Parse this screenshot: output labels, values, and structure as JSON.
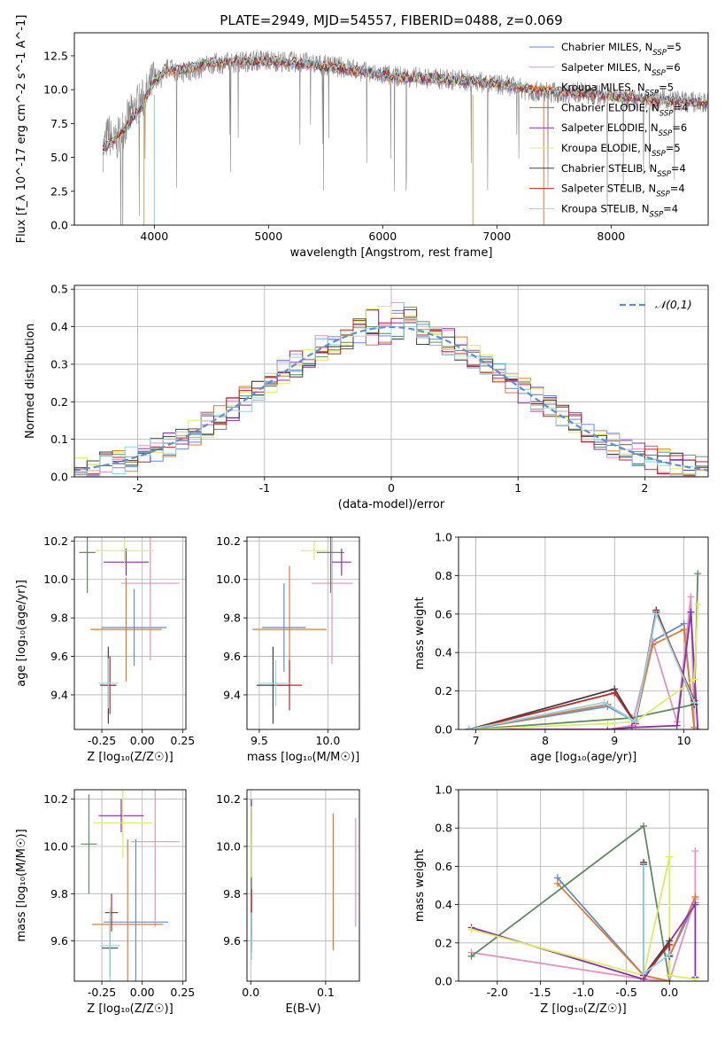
{
  "figure": {
    "title": "PLATE=2949, MJD=54557, FIBERID=0488, z=0.069"
  },
  "models": [
    {
      "name": "Chabrier MILES",
      "nssp": "5",
      "color": "#5b8fd9"
    },
    {
      "name": "Salpeter MILES",
      "nssp": "6",
      "color": "#e98fc0"
    },
    {
      "name": "Kroupa MILES",
      "nssp": "5",
      "color": "#e27b2e"
    },
    {
      "name": "Chabrier ELODIE",
      "nssp": "4",
      "color": "#5f8c62"
    },
    {
      "name": "Salpeter ELODIE",
      "nssp": "6",
      "color": "#8a2fb1"
    },
    {
      "name": "Kroupa ELODIE",
      "nssp": "5",
      "color": "#dcef5a"
    },
    {
      "name": "Chabrier STELIB",
      "nssp": "4",
      "color": "#404040"
    },
    {
      "name": "Salpeter STELIB",
      "nssp": "4",
      "color": "#c42424"
    },
    {
      "name": "Kroupa STELIB",
      "nssp": "4",
      "color": "#8fd8e8"
    }
  ],
  "chart_data": [
    {
      "id": "spectrum",
      "type": "line",
      "xlabel": "wavelength [Angstrom, rest frame]",
      "ylabel": "Flux [f_λ 10^-17 erg cm^-2 s^-1 A^-1]",
      "xlim": [
        3300,
        8850
      ],
      "ylim": [
        0,
        14.2
      ],
      "xticks": [
        4000,
        5000,
        6000,
        7000,
        8000
      ],
      "yticks": [
        0.0,
        2.5,
        5.0,
        7.5,
        10.0,
        12.5
      ],
      "grid": false,
      "legend": "upper right",
      "data_series": {
        "name": "data",
        "color": "#888888",
        "x": [
          3550,
          3600,
          3650,
          3700,
          3750,
          3800,
          3850,
          3900,
          3950,
          4000,
          4050,
          4100,
          4150,
          4200,
          4300,
          4400,
          4500,
          4700,
          4900,
          5100,
          5300,
          5500,
          5700,
          5900,
          6100,
          6300,
          6500,
          6700,
          6900,
          7100,
          7300,
          7500,
          7700,
          7900,
          8100,
          8300,
          8500,
          8700,
          8850
        ],
        "y": [
          5.5,
          6.8,
          5.9,
          6.7,
          7.5,
          8.2,
          8.9,
          9.3,
          9.9,
          11.0,
          10.7,
          11.4,
          11.8,
          11.2,
          11.3,
          11.6,
          11.9,
          12.0,
          12.2,
          12.1,
          12.0,
          11.8,
          11.6,
          11.2,
          11.0,
          10.9,
          10.8,
          10.7,
          10.5,
          10.3,
          9.9,
          9.8,
          9.8,
          9.6,
          9.4,
          9.3,
          9.2,
          9.1,
          9.0
        ]
      },
      "model_series": {
        "x": [
          3550,
          3700,
          3900,
          4000,
          4100,
          4300,
          4500,
          4700,
          5000,
          5300,
          5600,
          5900,
          6200,
          6500,
          6800,
          7100,
          7400,
          7700,
          8000,
          8300,
          8600,
          8850
        ],
        "y": [
          5.6,
          6.7,
          8.9,
          10.7,
          11.3,
          11.6,
          12.0,
          12.1,
          12.1,
          11.9,
          11.6,
          11.2,
          10.9,
          10.8,
          10.6,
          10.3,
          9.9,
          9.8,
          9.5,
          9.3,
          9.1,
          9.0
        ]
      }
    },
    {
      "id": "residual-histogram",
      "type": "line",
      "xlabel": "(data-model)/error",
      "ylabel": "Normed distribution",
      "xlim": [
        -2.5,
        2.5
      ],
      "ylim": [
        0,
        0.51
      ],
      "xticks": [
        -2,
        -1,
        0,
        1,
        2
      ],
      "yticks": [
        0.0,
        0.1,
        0.2,
        0.3,
        0.4,
        0.5
      ],
      "grid": true,
      "legend": "upper right",
      "gauss_label": "𝒩(0,1)",
      "bin_width": 0.1,
      "bin_start": -2.5
    },
    {
      "id": "age-vs-z",
      "type": "scatter",
      "xlabel": "Z [log₁₀(Z/Z☉)]",
      "ylabel": "age  [log₁₀(age/yr)]",
      "xlim": [
        -0.42,
        0.27
      ],
      "ylim": [
        9.22,
        10.22
      ],
      "xticks": [
        -0.25,
        0.0,
        0.25
      ],
      "yticks": [
        9.4,
        9.6,
        9.8,
        10.0,
        10.2
      ],
      "grid": true,
      "points": [
        {
          "x": -0.05,
          "y": 9.75,
          "xerr": 0.2,
          "yerr": 0.2
        },
        {
          "x": 0.05,
          "y": 9.98,
          "xerr": 0.18,
          "yerr": 0.4
        },
        {
          "x": -0.1,
          "y": 9.74,
          "xerr": 0.22,
          "yerr": 0.27
        },
        {
          "x": -0.34,
          "y": 10.14,
          "xerr": 0.05,
          "yerr": 0.21
        },
        {
          "x": -0.1,
          "y": 10.09,
          "xerr": 0.14,
          "yerr": 0.07
        },
        {
          "x": -0.11,
          "y": 10.15,
          "xerr": 0.18,
          "yerr": 0.07
        },
        {
          "x": -0.21,
          "y": 9.45,
          "xerr": 0.05,
          "yerr": 0.2
        },
        {
          "x": -0.2,
          "y": 9.45,
          "xerr": 0.03,
          "yerr": 0.15
        },
        {
          "x": -0.21,
          "y": 9.46,
          "xerr": 0.06,
          "yerr": 0.13
        }
      ]
    },
    {
      "id": "age-vs-mass",
      "type": "scatter",
      "xlabel": "mass [log₁₀(M/M☉)]",
      "ylabel": "",
      "xlim": [
        9.41,
        10.23
      ],
      "ylim": [
        9.22,
        10.22
      ],
      "xticks": [
        9.5,
        10.0
      ],
      "yticks": [
        9.4,
        9.6,
        9.8,
        10.0,
        10.2
      ],
      "grid": true,
      "points": [
        {
          "x": 9.68,
          "y": 9.75,
          "xerr": 0.16,
          "yerr": 0.23
        },
        {
          "x": 10.03,
          "y": 9.98,
          "xerr": 0.15,
          "yerr": 0.42
        },
        {
          "x": 9.72,
          "y": 9.74,
          "xerr": 0.27,
          "yerr": 0.33
        },
        {
          "x": 10.02,
          "y": 10.14,
          "xerr": 0.1,
          "yerr": 0.21
        },
        {
          "x": 10.1,
          "y": 10.09,
          "xerr": 0.07,
          "yerr": 0.07
        },
        {
          "x": 9.9,
          "y": 10.15,
          "xerr": 0.1,
          "yerr": 0.05
        },
        {
          "x": 9.6,
          "y": 9.45,
          "xerr": 0.12,
          "yerr": 0.2
        },
        {
          "x": 9.72,
          "y": 9.45,
          "xerr": 0.09,
          "yerr": 0.13
        },
        {
          "x": 9.62,
          "y": 9.46,
          "xerr": 0.12,
          "yerr": 0.12
        }
      ]
    },
    {
      "id": "massweight-vs-age",
      "type": "line",
      "xlabel": "age  [log₁₀(age/yr)]",
      "ylabel": "mass weight",
      "xlim": [
        6.75,
        10.35
      ],
      "ylim": [
        0,
        1.0
      ],
      "xticks": [
        7,
        8,
        9,
        10
      ],
      "yticks": [
        0.0,
        0.2,
        0.4,
        0.6,
        0.8,
        1.0
      ],
      "grid": true,
      "series": [
        {
          "x": [
            6.9,
            8.9,
            9.3,
            9.55,
            10.0,
            10.15
          ],
          "y": [
            0.0,
            0.12,
            0.04,
            0.46,
            0.55,
            0.0
          ]
        },
        {
          "x": [
            6.9,
            8.9,
            9.25,
            9.55,
            9.9,
            10.1,
            10.15
          ],
          "y": [
            0.0,
            0.0,
            0.02,
            0.46,
            0.04,
            0.69,
            0.0
          ]
        },
        {
          "x": [
            6.9,
            8.9,
            9.3,
            9.55,
            10.0,
            10.15
          ],
          "y": [
            0.0,
            0.13,
            0.04,
            0.44,
            0.52,
            0.01
          ]
        },
        {
          "x": [
            6.9,
            9.25,
            10.15,
            10.2
          ],
          "y": [
            0.0,
            0.06,
            0.13,
            0.81
          ]
        },
        {
          "x": [
            6.9,
            8.9,
            9.25,
            9.9,
            10.1,
            10.2
          ],
          "y": [
            0.0,
            0.0,
            0.01,
            0.02,
            0.61,
            0.0
          ]
        },
        {
          "x": [
            6.9,
            8.9,
            9.3,
            10.15,
            10.2
          ],
          "y": [
            0.0,
            0.03,
            0.04,
            0.26,
            0.65
          ]
        },
        {
          "x": [
            6.9,
            9.0,
            9.3,
            9.6,
            10.15
          ],
          "y": [
            0.0,
            0.21,
            0.03,
            0.62,
            0.13
          ]
        },
        {
          "x": [
            6.9,
            9.0,
            9.3,
            9.6,
            10.15
          ],
          "y": [
            0.0,
            0.19,
            0.03,
            0.61,
            0.15
          ]
        },
        {
          "x": [
            6.9,
            8.85,
            9.3,
            9.6,
            10.15
          ],
          "y": [
            0.0,
            0.14,
            0.04,
            0.6,
            0.14
          ]
        }
      ]
    },
    {
      "id": "mass-vs-z",
      "type": "scatter",
      "xlabel": "Z [log₁₀(Z/Z☉)]",
      "ylabel": "mass [log₁₀(M/M☉)]",
      "xlim": [
        -0.42,
        0.27
      ],
      "ylim": [
        9.43,
        10.24
      ],
      "xticks": [
        -0.25,
        0.0,
        0.25
      ],
      "yticks": [
        9.6,
        9.8,
        10.0,
        10.2
      ],
      "grid": true,
      "points": [
        {
          "x": -0.04,
          "y": 9.68,
          "xerr": 0.2,
          "yerr": 0.35
        },
        {
          "x": 0.08,
          "y": 10.02,
          "xerr": 0.15,
          "yerr": 0.36
        },
        {
          "x": -0.09,
          "y": 9.67,
          "xerr": 0.22,
          "yerr": 0.36
        },
        {
          "x": -0.33,
          "y": 10.01,
          "xerr": 0.05,
          "yerr": 0.21
        },
        {
          "x": -0.13,
          "y": 10.13,
          "xerr": 0.14,
          "yerr": 0.07
        },
        {
          "x": -0.12,
          "y": 10.1,
          "xerr": 0.18,
          "yerr": 0.15
        },
        {
          "x": -0.2,
          "y": 9.57,
          "xerr": 0.05,
          "yerr": 0.12
        },
        {
          "x": -0.19,
          "y": 9.72,
          "xerr": 0.04,
          "yerr": 0.08
        },
        {
          "x": -0.2,
          "y": 9.58,
          "xerr": 0.06,
          "yerr": 0.16
        }
      ]
    },
    {
      "id": "mass-vs-ebv",
      "type": "scatter",
      "xlabel": "E(B-V)",
      "ylabel": "",
      "xlim": [
        -0.005,
        0.145
      ],
      "ylim": [
        9.43,
        10.24
      ],
      "xticks": [
        0.0,
        0.1
      ],
      "yticks": [
        9.6,
        9.8,
        10.0,
        10.2
      ],
      "grid": true,
      "points": [
        {
          "x": 0.001,
          "y": 9.9,
          "xerr": 0.0,
          "yerr": 0.25
        },
        {
          "x": 0.14,
          "y": 9.89,
          "xerr": 0.0,
          "yerr": 0.23
        },
        {
          "x": 0.11,
          "y": 9.85,
          "xerr": 0.0,
          "yerr": 0.29
        },
        {
          "x": 0.001,
          "y": 9.72,
          "xerr": 0.0,
          "yerr": 0.15
        },
        {
          "x": 0.001,
          "y": 10.12,
          "xerr": 0.0,
          "yerr": 0.08
        },
        {
          "x": 0.001,
          "y": 10.02,
          "xerr": 0.0,
          "yerr": 0.15
        },
        {
          "x": 0.001,
          "y": 9.6,
          "xerr": 0.0,
          "yerr": 0.05
        },
        {
          "x": 0.001,
          "y": 9.72,
          "xerr": 0.0,
          "yerr": 0.1
        },
        {
          "x": 0.001,
          "y": 9.62,
          "xerr": 0.0,
          "yerr": 0.1
        }
      ]
    },
    {
      "id": "massweight-vs-z",
      "type": "line",
      "xlabel": "Z [log₁₀(Z/Z☉)]",
      "ylabel": "mass weight",
      "xlim": [
        -2.45,
        0.45
      ],
      "ylim": [
        0,
        1.0
      ],
      "xticks": [
        -2.0,
        -1.5,
        -1.0,
        -0.5,
        0.0
      ],
      "yticks": [
        0.0,
        0.2,
        0.4,
        0.6,
        0.8,
        1.0
      ],
      "grid": true,
      "series": [
        {
          "x": [
            -1.3,
            -0.3,
            0.0,
            0.0,
            0.3
          ],
          "y": [
            0.54,
            0.03,
            0.0,
            0.13,
            0.41
          ]
        },
        {
          "x": [
            -2.3,
            -0.3,
            0.0,
            0.3,
            0.3
          ],
          "y": [
            0.15,
            0.01,
            0.0,
            0.43,
            0.68
          ]
        },
        {
          "x": [
            -1.3,
            -0.3,
            0.0,
            0.0,
            0.3
          ],
          "y": [
            0.51,
            0.03,
            0.0,
            0.13,
            0.44
          ]
        },
        {
          "x": [
            -2.3,
            -0.3,
            0.0
          ],
          "y": [
            0.13,
            0.81,
            0.0
          ]
        },
        {
          "x": [
            -2.3,
            -0.3,
            0.3,
            0.3
          ],
          "y": [
            0.28,
            0.01,
            0.4,
            0.02
          ]
        },
        {
          "x": [
            -2.3,
            -0.3,
            0.0,
            0.0,
            0.3
          ],
          "y": [
            0.27,
            0.03,
            0.65,
            0.03,
            0.01
          ]
        },
        {
          "x": [
            -0.3,
            -0.3,
            0.0,
            0.0
          ],
          "y": [
            0.62,
            0.03,
            0.21,
            0.13
          ]
        },
        {
          "x": [
            -0.3,
            -0.3,
            0.0,
            0.0
          ],
          "y": [
            0.61,
            0.03,
            0.19,
            0.14
          ]
        },
        {
          "x": [
            -0.3,
            -0.3,
            0.0,
            0.0
          ],
          "y": [
            0.6,
            0.04,
            0.14,
            0.14
          ]
        }
      ]
    }
  ]
}
